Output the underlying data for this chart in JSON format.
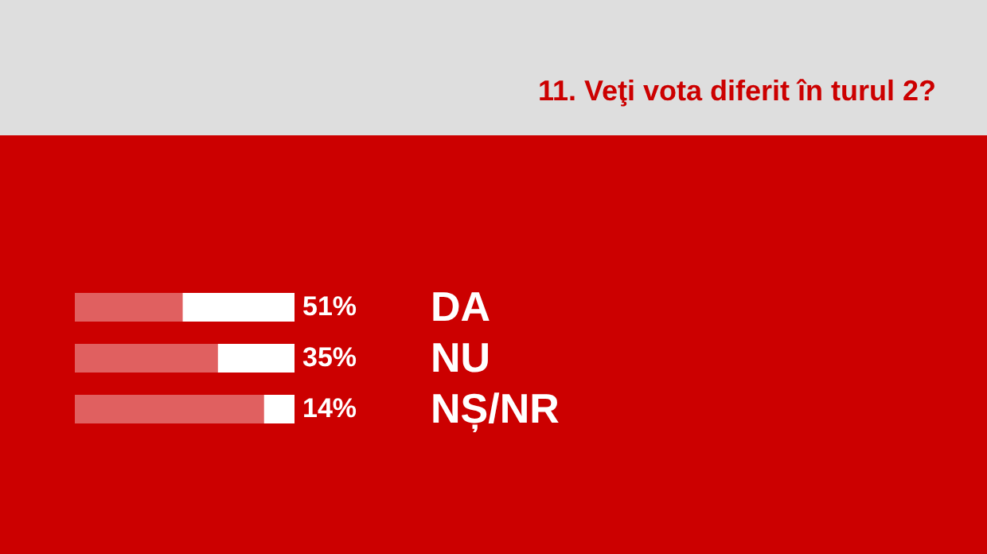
{
  "chart_data": {
    "type": "bar",
    "orientation": "horizontal",
    "stacked": true,
    "title": "11. Veţi vota diferit în turul 2?",
    "categories": [
      "DA",
      "NU",
      "NȘ/NR"
    ],
    "series": [
      {
        "color": "#ffffff",
        "values": [
          51,
          35,
          14
        ],
        "value_labels": [
          "51%",
          "35%",
          "14%"
        ]
      },
      {
        "color": "#e06060",
        "values": [
          49,
          65,
          86
        ]
      }
    ],
    "xlim": [
      100,
      0
    ],
    "tick_labels": "y",
    "grid": false
  }
}
